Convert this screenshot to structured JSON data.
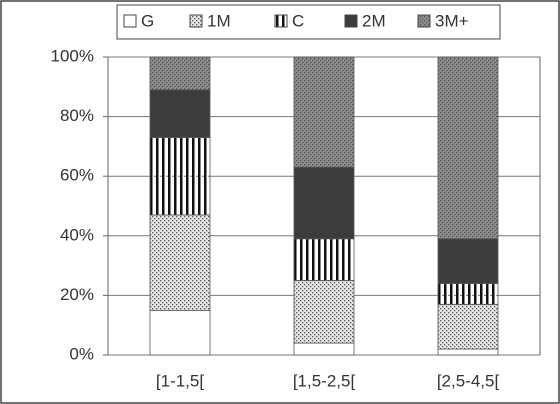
{
  "chart_data": {
    "type": "stacked_bar",
    "categories": [
      "[1-1,5[",
      "[1,5-2,5[",
      "[2,5-4,5["
    ],
    "series": [
      {
        "name": "G",
        "color": "#ffffff",
        "pattern": "solid",
        "values": [
          15,
          4,
          2
        ]
      },
      {
        "name": "1M",
        "color": "#e6e6e6",
        "pattern": "dots",
        "values": [
          32,
          21,
          15
        ]
      },
      {
        "name": "C",
        "color": "#ffffff",
        "pattern": "vstripes",
        "values": [
          26,
          14,
          7
        ]
      },
      {
        "name": "2M",
        "color": "#3c3c3c",
        "pattern": "solid",
        "values": [
          16,
          24,
          15
        ]
      },
      {
        "name": "3M+",
        "color": "#8c8c8c",
        "pattern": "dots",
        "values": [
          11,
          37,
          61
        ]
      }
    ],
    "ylim": [
      0,
      100
    ],
    "yticks": [
      {
        "value": 0,
        "label": "0%"
      },
      {
        "value": 20,
        "label": "20%"
      },
      {
        "value": 40,
        "label": "40%"
      },
      {
        "value": 60,
        "label": "60%"
      },
      {
        "value": 80,
        "label": "80%"
      },
      {
        "value": 100,
        "label": "100%"
      }
    ],
    "grid": true,
    "legend": "top"
  }
}
